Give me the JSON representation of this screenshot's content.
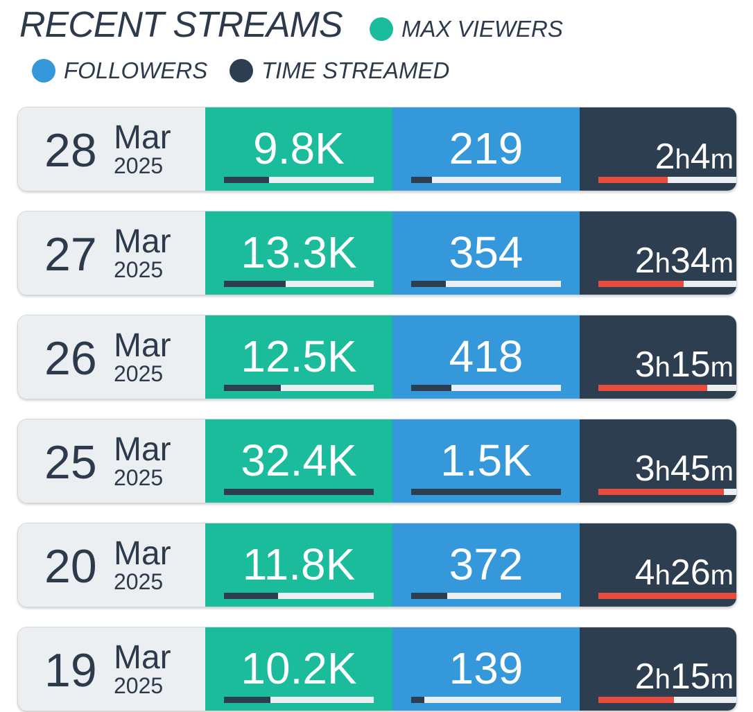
{
  "header": {
    "title": "RECENT STREAMS",
    "legend": [
      {
        "label": "MAX VIEWERS",
        "color": "#1abc9c"
      },
      {
        "label": "FOLLOWERS",
        "color": "#3498db"
      },
      {
        "label": "TIME STREAMED",
        "color": "#2c3e50"
      }
    ]
  },
  "colors": {
    "viewers": "#1abc9c",
    "followers": "#3498db",
    "time": "#2c3e50",
    "time_bar": "#e74c3c",
    "date_bg": "#eceff1"
  },
  "streams": [
    {
      "day": "28",
      "month": "Mar",
      "year": "2025",
      "viewers": "9.8K",
      "viewers_fill": 0.3,
      "followers": "219",
      "followers_fill": 0.14,
      "time_h": "2",
      "time_m": "4",
      "time_fill": 0.5
    },
    {
      "day": "27",
      "month": "Mar",
      "year": "2025",
      "viewers": "13.3K",
      "viewers_fill": 0.41,
      "followers": "354",
      "followers_fill": 0.23,
      "time_h": "2",
      "time_m": "34",
      "time_fill": 0.62
    },
    {
      "day": "26",
      "month": "Mar",
      "year": "2025",
      "viewers": "12.5K",
      "viewers_fill": 0.38,
      "followers": "418",
      "followers_fill": 0.27,
      "time_h": "3",
      "time_m": "15",
      "time_fill": 0.79
    },
    {
      "day": "25",
      "month": "Mar",
      "year": "2025",
      "viewers": "32.4K",
      "viewers_fill": 1.0,
      "followers": "1.5K",
      "followers_fill": 1.0,
      "time_h": "3",
      "time_m": "45",
      "time_fill": 0.91
    },
    {
      "day": "20",
      "month": "Mar",
      "year": "2025",
      "viewers": "11.8K",
      "viewers_fill": 0.36,
      "followers": "372",
      "followers_fill": 0.24,
      "time_h": "4",
      "time_m": "26",
      "time_fill": 1.0
    },
    {
      "day": "19",
      "month": "Mar",
      "year": "2025",
      "viewers": "10.2K",
      "viewers_fill": 0.31,
      "followers": "139",
      "followers_fill": 0.09,
      "time_h": "2",
      "time_m": "15",
      "time_fill": 0.55
    }
  ]
}
